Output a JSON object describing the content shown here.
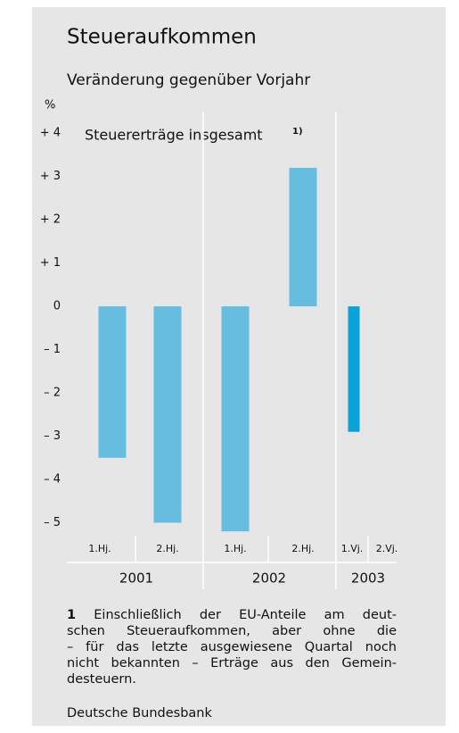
{
  "chart_data": {
    "type": "bar",
    "title": "Steueraufkommen",
    "subtitle": "Veränderung gegenüber Vorjahr",
    "y_unit": "%",
    "annotation": "Steuererträge insgesamt",
    "annotation_ref": "1)",
    "categories": [
      "1.Hj.",
      "2.Hj.",
      "1.Hj.",
      "2.Hj.",
      "1.Vj.",
      "2.Vj."
    ],
    "values": [
      -3.5,
      -5.0,
      -5.2,
      3.2,
      -2.9,
      null
    ],
    "colors": [
      "#66bde0",
      "#66bde0",
      "#66bde0",
      "#66bde0",
      "#0aa2d9",
      "#0aa2d9"
    ],
    "years": [
      "2001",
      "2002",
      "2003"
    ],
    "ylim": [
      -5.3,
      4.5
    ],
    "yticks": [
      {
        "value": 4,
        "label": "+ 4"
      },
      {
        "value": 3,
        "label": "+ 3"
      },
      {
        "value": 2,
        "label": "+ 2"
      },
      {
        "value": 1,
        "label": "+ 1"
      },
      0,
      {
        "value": -1,
        "label": "– 1"
      },
      {
        "value": -2,
        "label": "– 2"
      },
      {
        "value": -3,
        "label": "– 3"
      },
      {
        "value": -4,
        "label": "– 4"
      },
      {
        "value": -5,
        "label": "– 5"
      }
    ],
    "footnote": {
      "marker": "1",
      "lines": [
        "Einschließlich der EU-Anteile am deut-",
        "schen Steueraufkommen, aber ohne die",
        "– für das letzte ausgewiesene Quartal noch",
        "nicht bekannten – Erträge aus den Gemein-",
        "desteuern."
      ]
    },
    "source": "Deutsche Bundesbank"
  }
}
